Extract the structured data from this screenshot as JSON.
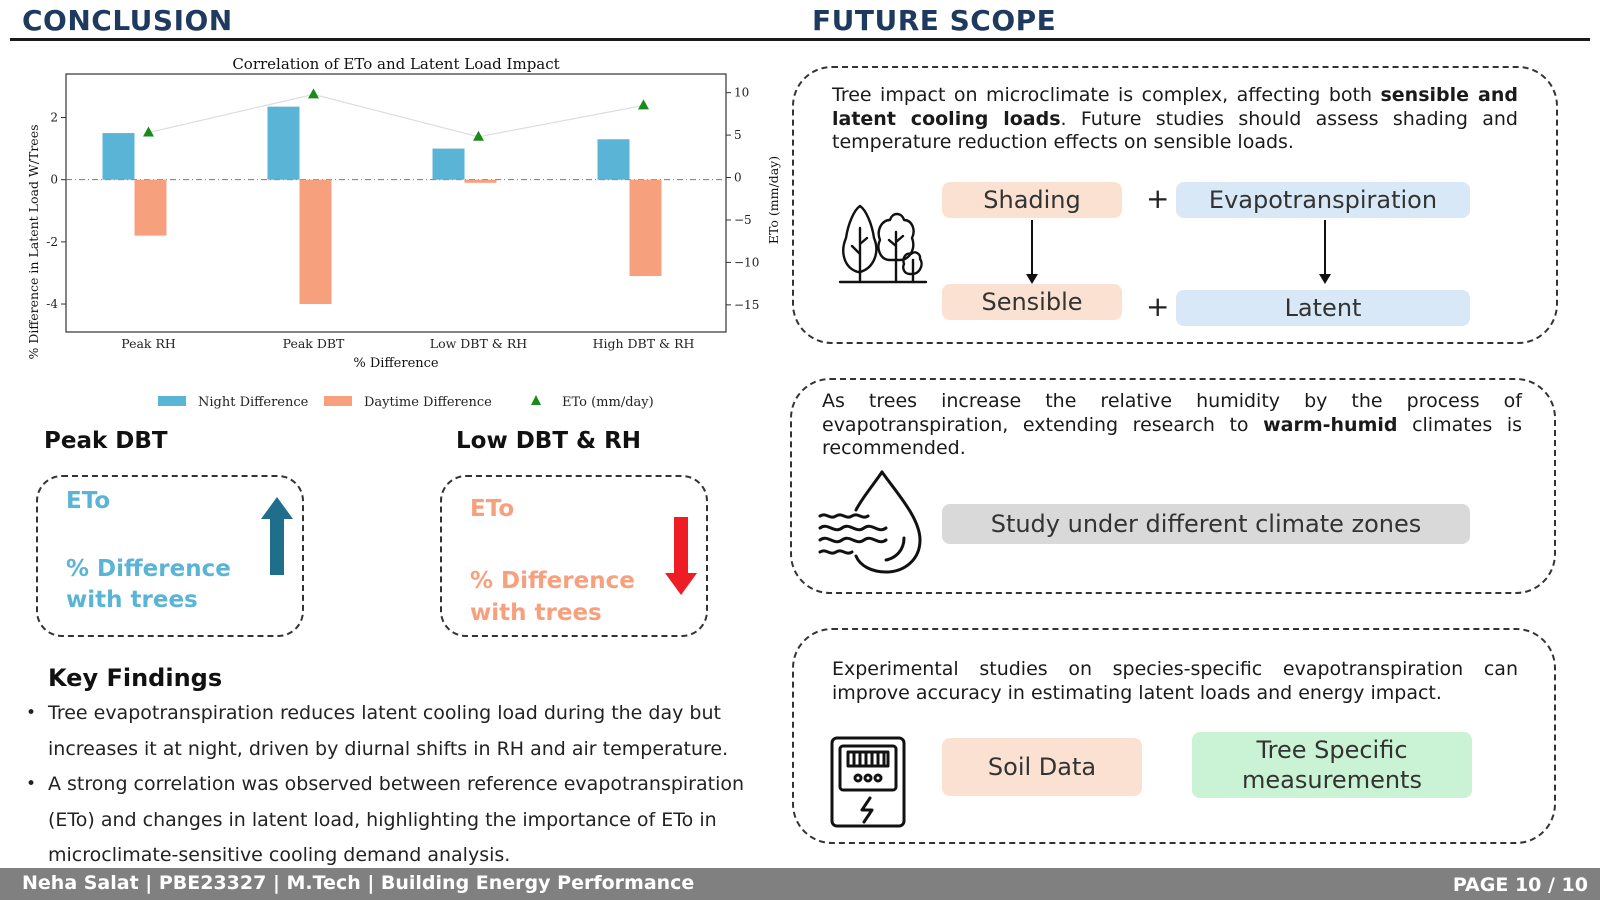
{
  "headers": {
    "left": "CONCLUSION",
    "right": "FUTURE SCOPE"
  },
  "chart_data": {
    "type": "bar",
    "title": "Correlation of ETo and Latent Load Impact",
    "xlabel": "% Difference",
    "ylabel": "% Difference in Latent Load W/Trees",
    "y2label": "ETo (mm/day)",
    "categories": [
      "Peak RH",
      "Peak DBT",
      "Low DBT & RH",
      "High DBT & RH"
    ],
    "ylim": [
      -4.9,
      3.4
    ],
    "yticks": [
      2,
      0,
      -2,
      -4
    ],
    "y2lim": [
      -18.2,
      12.2
    ],
    "y2ticks": [
      10,
      5,
      0,
      -5,
      -10,
      -15
    ],
    "grid": false,
    "legend_position": "bottom",
    "series": [
      {
        "name": "Night Difference",
        "kind": "bar",
        "color": "#5ab4d6",
        "values": [
          1.5,
          2.35,
          1.0,
          1.3
        ]
      },
      {
        "name": "Daytime Difference",
        "kind": "bar",
        "color": "#f7a07e",
        "values": [
          -1.8,
          -4.0,
          -0.1,
          -3.1
        ]
      },
      {
        "name": "ETo (mm/day)",
        "kind": "line",
        "axis": "right",
        "color": "#1a8a1a",
        "values": [
          5.3,
          9.8,
          4.8,
          8.5
        ]
      }
    ]
  },
  "cases": [
    {
      "title": "Peak DBT",
      "eto_label": "ETo",
      "diff_label_1": "% Difference",
      "diff_label_2": "with trees",
      "trend": "up",
      "arrow_color": "#1f6e8c"
    },
    {
      "title": "Low DBT & RH",
      "eto_label": "ETo",
      "diff_label_1": "% Difference",
      "diff_label_2": "with trees",
      "trend": "down",
      "arrow_color": "#ee1c24"
    }
  ],
  "key_findings": {
    "title": "Key Findings",
    "items": [
      "Tree evapotranspiration reduces latent cooling load during the day but increases it at night, driven by diurnal shifts in RH and air temperature.",
      "A strong correlation was observed between reference evapotranspiration (ETo) and changes in latent load, highlighting the importance of ETo in microclimate-sensitive cooling demand analysis."
    ]
  },
  "future_scope": {
    "card1": {
      "text_1": "Tree impact on microclimate is complex, affecting both ",
      "bold_1": "sensible and latent cooling loads",
      "text_2": ". Future studies should assess shading and temperature reduction effects on sensible loads.",
      "shading": "Shading",
      "evapotranspiration": "Evapotranspiration",
      "sensible": "Sensible",
      "latent": "Latent",
      "plus": "+",
      "icon": "trees-icon"
    },
    "card2": {
      "text_1": "As trees increase the relative humidity by the process of evapotranspiration, extending research to ",
      "bold_1": "warm-humid",
      "text_2": " climates is recommended.",
      "chip": "Study under different climate zones",
      "icon": "humidity-drop-icon"
    },
    "card3": {
      "text": "Experimental studies on species-specific evapotranspiration can improve accuracy in estimating latent loads and energy impact.",
      "chip_1": "Soil Data",
      "chip_2": "Tree Specific measurements",
      "icon": "sensor-meter-icon"
    }
  },
  "footer": {
    "left": "Neha Salat | PBE23327 | M.Tech | Building Energy Performance",
    "right": "PAGE 10 / 10"
  }
}
